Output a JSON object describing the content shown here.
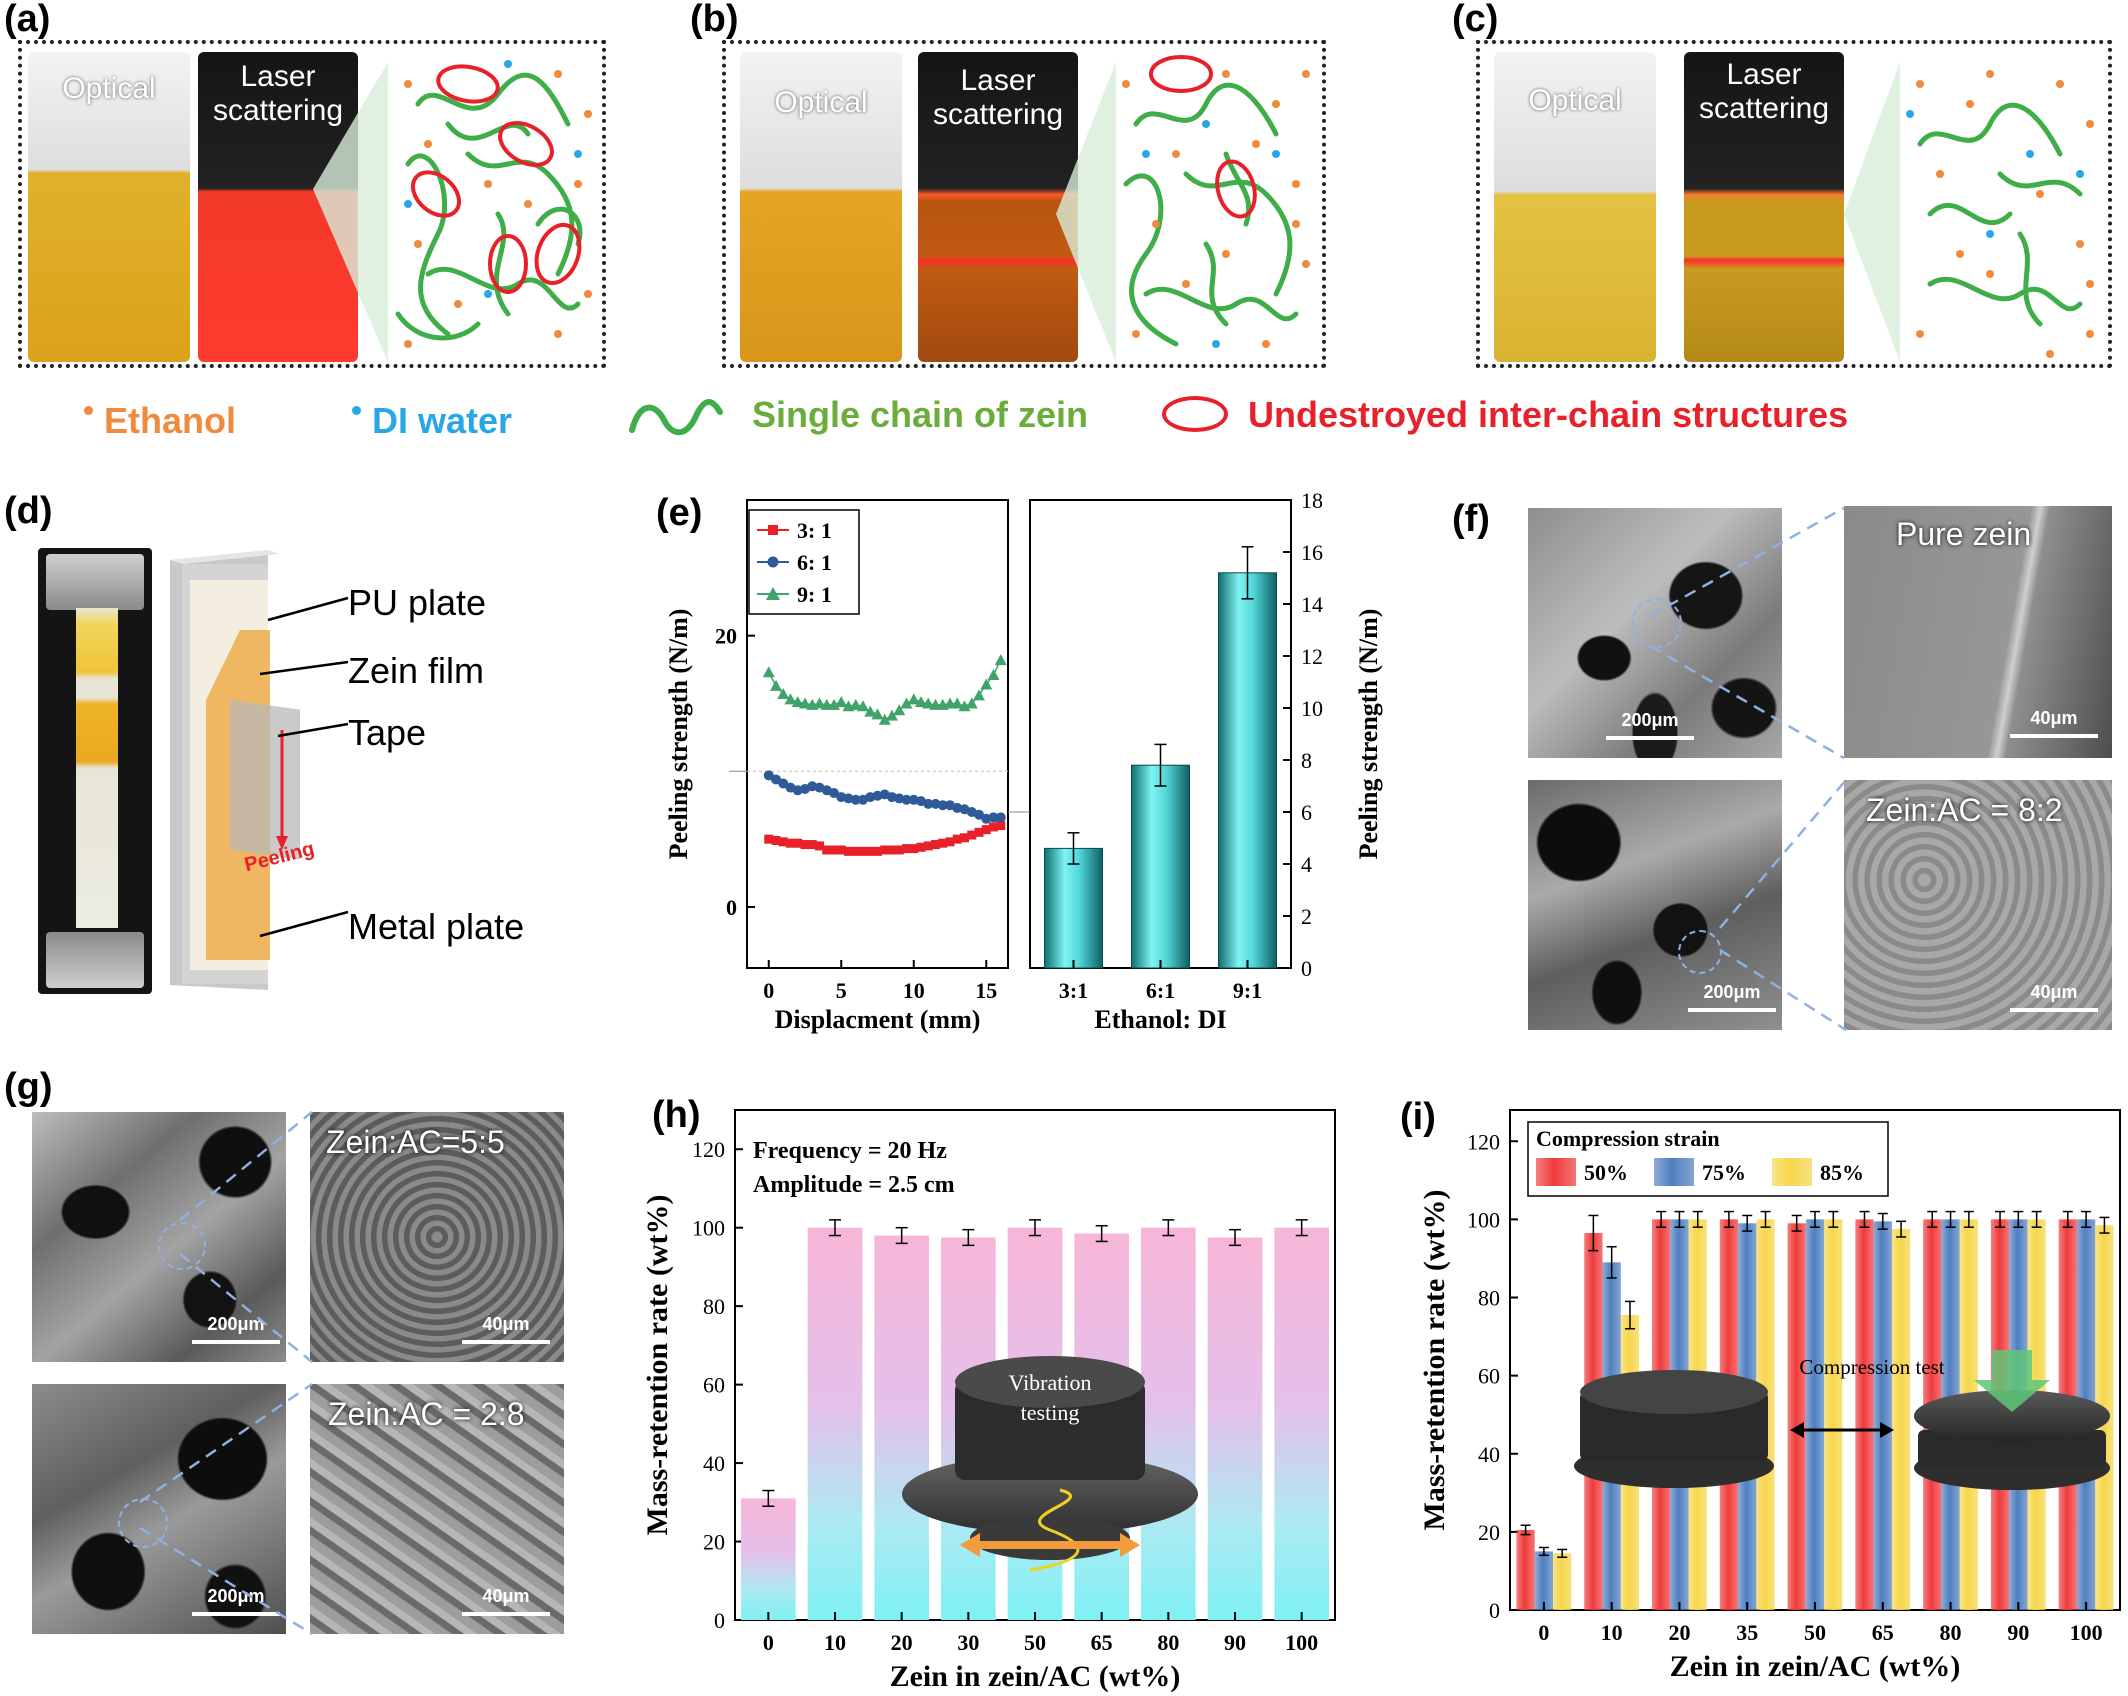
{
  "panel_labels": [
    "(a)",
    "(b)",
    "(c)",
    "(d)",
    "(e)",
    "(f)",
    "(g)",
    "(h)",
    "(i)"
  ],
  "vial_labels": {
    "optical": "Optical",
    "laser_line1": "Laser",
    "laser_line2": "scattering"
  },
  "legend_top": {
    "ethanol": "Ethanol",
    "di_water": "DI water",
    "chain": "Single chain of zein",
    "structures": "Undestroyed inter-chain structures",
    "colors": {
      "ethanol": "#f08a3c",
      "di_water": "#29a6e6",
      "chain": "#3fae49",
      "structures": "#e8202a"
    }
  },
  "panel_d": {
    "pu_plate": "PU plate",
    "zein_film": "Zein film",
    "tape": "Tape",
    "peeling": "Peeling",
    "metal_plate": "Metal plate"
  },
  "panel_f": {
    "top_label": "Pure zein",
    "bottom_label": "Zein:AC = 8:2",
    "scale_big": "200μm",
    "scale_small": "40μm"
  },
  "panel_g": {
    "top_label": "Zein:AC=5:5",
    "bottom_label": "Zein:AC = 2:8",
    "scale_big": "200μm",
    "scale_small": "40μm"
  },
  "chart_data": [
    {
      "id": "e-left",
      "type": "line",
      "xlabel": "Displacment (mm)",
      "ylabel": "Peeling strength (N/m)",
      "xlim": [
        -1.5,
        16.5
      ],
      "ylim": [
        -4.5,
        30
      ],
      "xticks": [
        0,
        5,
        10,
        15
      ],
      "yticks": [
        0,
        20
      ],
      "series": [
        {
          "name": "3: 1",
          "color": "#e8202a",
          "marker": "square",
          "x": [
            0,
            0.5,
            1,
            1.5,
            2,
            2.5,
            3,
            3.5,
            4,
            4.5,
            5,
            5.5,
            6,
            6.5,
            7,
            7.5,
            8,
            8.5,
            9,
            9.5,
            10,
            10.5,
            11,
            11.5,
            12,
            12.5,
            13,
            13.5,
            14,
            14.5,
            15,
            15.5,
            16
          ],
          "y": [
            5.0,
            4.9,
            4.8,
            4.7,
            4.7,
            4.6,
            4.6,
            4.5,
            4.2,
            4.2,
            4.2,
            4.1,
            4.1,
            4.1,
            4.1,
            4.1,
            4.2,
            4.2,
            4.2,
            4.3,
            4.3,
            4.4,
            4.5,
            4.6,
            4.7,
            4.8,
            5.0,
            5.1,
            5.3,
            5.5,
            5.7,
            5.9,
            6.0
          ]
        },
        {
          "name": "6: 1",
          "color": "#2f5a98",
          "marker": "circle",
          "x": [
            0,
            0.5,
            1,
            1.5,
            2,
            2.5,
            3,
            3.5,
            4,
            4.5,
            5,
            5.5,
            6,
            6.5,
            7,
            7.5,
            8,
            8.5,
            9,
            9.5,
            10,
            10.5,
            11,
            11.5,
            12,
            12.5,
            13,
            13.5,
            14,
            14.5,
            15,
            15.5,
            16
          ],
          "y": [
            9.7,
            9.4,
            9.1,
            8.8,
            8.6,
            8.7,
            8.9,
            8.8,
            8.6,
            8.4,
            8.1,
            8.0,
            7.9,
            7.9,
            8.1,
            8.2,
            8.3,
            8.1,
            8.0,
            7.9,
            7.9,
            7.8,
            7.6,
            7.6,
            7.5,
            7.5,
            7.3,
            7.2,
            7.0,
            6.8,
            6.5,
            6.6,
            6.6
          ]
        },
        {
          "name": "9: 1",
          "color": "#3fa36b",
          "marker": "triangle",
          "x": [
            0,
            0.5,
            1,
            1.5,
            2,
            2.5,
            3,
            3.5,
            4,
            4.5,
            5,
            5.5,
            6,
            6.5,
            7,
            7.5,
            8,
            8.5,
            9,
            9.5,
            10,
            10.5,
            11,
            11.5,
            12,
            12.5,
            13,
            13.5,
            14,
            14.5,
            15,
            15.5,
            16
          ],
          "y": [
            17.3,
            16.3,
            15.7,
            15.3,
            15.1,
            15.0,
            14.9,
            15.0,
            14.9,
            14.9,
            15.1,
            14.8,
            14.9,
            14.8,
            14.4,
            14.2,
            13.8,
            14.1,
            14.5,
            15.0,
            15.3,
            15.1,
            15.0,
            14.9,
            14.9,
            15.0,
            15.0,
            14.8,
            15.0,
            15.6,
            16.4,
            17.1,
            18.2
          ]
        }
      ]
    },
    {
      "id": "e-right",
      "type": "bar",
      "xlabel": "Ethanol: DI",
      "ylabel": "Peeling strength (N/m)",
      "categories": [
        "3:1",
        "6:1",
        "9:1"
      ],
      "values": [
        4.6,
        7.8,
        15.2
      ],
      "errors": [
        0.6,
        0.8,
        1.0
      ],
      "ylim": [
        0,
        18
      ],
      "yticks": [
        0,
        2,
        4,
        6,
        8,
        10,
        12,
        14,
        16,
        18
      ],
      "color": "#4fd3d6"
    },
    {
      "id": "h",
      "type": "bar",
      "xlabel": "Zein in zein/AC (wt%)",
      "ylabel": "Mass-retention rate (wt%)",
      "categories": [
        "0",
        "10",
        "20",
        "30",
        "50",
        "65",
        "80",
        "90",
        "100"
      ],
      "values": [
        31,
        100,
        98,
        97.5,
        100,
        98.5,
        100,
        97.5,
        100
      ],
      "errors": [
        2.0,
        2.0,
        2.0,
        2.0,
        2.0,
        2.0,
        2.0,
        2.0,
        2.0
      ],
      "ylim": [
        0,
        130
      ],
      "yticks": [
        0,
        20,
        40,
        60,
        80,
        100,
        120
      ],
      "annotations": [
        "Frequency = 20 Hz",
        "Amplitude = 2.5 cm"
      ],
      "inset_label": [
        "Vibration",
        "testing"
      ]
    },
    {
      "id": "i",
      "type": "bar",
      "xlabel": "Zein in zein/AC (wt%)",
      "ylabel": "Mass-retention rate (wt%)",
      "categories": [
        "0",
        "10",
        "20",
        "35",
        "50",
        "65",
        "80",
        "90",
        "100"
      ],
      "legend_title": "Compression strain",
      "series": [
        {
          "name": "50%",
          "color": "#ef3b3b",
          "values": [
            20.5,
            96.5,
            100,
            100,
            99,
            100,
            100,
            100,
            100
          ],
          "errors": [
            1.2,
            4.5,
            2,
            2,
            2,
            2,
            2,
            2,
            2
          ]
        },
        {
          "name": "75%",
          "color": "#4f7fbf",
          "values": [
            15,
            89,
            100,
            99,
            100,
            99.5,
            100,
            100,
            100
          ],
          "errors": [
            1.0,
            4.0,
            2,
            2,
            2,
            2,
            2,
            2,
            2
          ]
        },
        {
          "name": "85%",
          "color": "#f6d64a",
          "values": [
            14.5,
            75.5,
            100,
            100,
            100,
            97.5,
            100,
            100,
            98.5
          ],
          "errors": [
            1.0,
            3.5,
            2,
            2,
            2,
            2,
            2,
            2,
            2
          ]
        }
      ],
      "ylim": [
        0,
        128
      ],
      "yticks": [
        0,
        20,
        40,
        60,
        80,
        100,
        120
      ],
      "inset_label": "Compression test"
    }
  ]
}
